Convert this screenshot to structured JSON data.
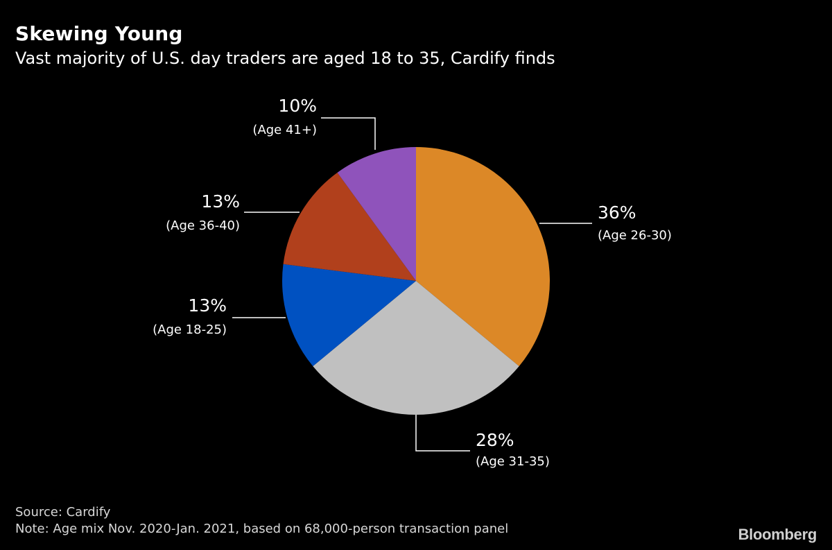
{
  "chart_data": {
    "type": "pie",
    "title": "Skewing Young",
    "subtitle": "Vast majority of U.S. day traders are aged 18 to 35, Cardify finds",
    "slices": [
      {
        "category": "(Age 26-30)",
        "value": 36,
        "label": "36%",
        "color": "#dc8827"
      },
      {
        "category": "(Age 31-35)",
        "value": 28,
        "label": "28%",
        "color": "#c0c0c0"
      },
      {
        "category": "(Age 18-25)",
        "value": 13,
        "label": "13%",
        "color": "#0051c1"
      },
      {
        "category": "(Age 36-40)",
        "value": 13,
        "label": "13%",
        "color": "#b1401c"
      },
      {
        "category": "(Age 41+)",
        "value": 10,
        "label": "10%",
        "color": "#8f53bb"
      }
    ],
    "source": "Source: Cardify",
    "note": "Note: Age mix Nov. 2020-Jan. 2021, based on 68,000-person transaction panel"
  },
  "brand": "Bloomberg"
}
